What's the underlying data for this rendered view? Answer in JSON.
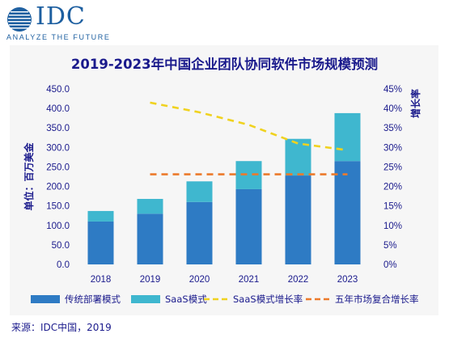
{
  "logo": {
    "name": "IDC",
    "tagline": "ANALYZE THE FUTURE"
  },
  "source": "来源：IDC中国，2019",
  "colors": {
    "on_premise": "#2e7bc4",
    "saas": "#3fb7cf",
    "saas_growth": "#f0d21f",
    "cagr": "#ec7a2b",
    "text": "#1a1a8c",
    "panel": "#f6f6f6"
  },
  "chart_data": {
    "type": "bar",
    "stacked": true,
    "title": "2019-2023年中国企业团队协同软件市场规模预测",
    "ylabel": "单位：百万美金",
    "y2label": "增长率",
    "categories": [
      "2018",
      "2019",
      "2020",
      "2021",
      "2022",
      "2023"
    ],
    "ylim": [
      0,
      450
    ],
    "y_ticks": [
      "0.0",
      "50.0",
      "100.0",
      "150.0",
      "200.0",
      "250.0",
      "300.0",
      "350.0",
      "400.0",
      "450.0"
    ],
    "y2lim": [
      0,
      45
    ],
    "y2_ticks": [
      "0%",
      "5%",
      "10%",
      "15%",
      "20%",
      "25%",
      "30%",
      "35%",
      "40%",
      "45%"
    ],
    "series": [
      {
        "name": "传统部署模式",
        "type": "bar",
        "axis": "left",
        "values": [
          110,
          130,
          160,
          193,
          228,
          265
        ]
      },
      {
        "name": "SaaS模式",
        "type": "bar",
        "axis": "left",
        "values": [
          27,
          38,
          53,
          72,
          94,
          123
        ]
      },
      {
        "name": "SaaS模式增长率",
        "type": "line",
        "axis": "right",
        "dash": "dashed",
        "values": [
          null,
          41.5,
          39,
          35.8,
          31,
          29.3
        ]
      },
      {
        "name": "五年市场复合增长率",
        "type": "line",
        "axis": "right",
        "dash": "dashed",
        "values": [
          null,
          23.1,
          23.1,
          23.1,
          23.1,
          23.1
        ]
      }
    ],
    "grid": false,
    "legend_position": "bottom"
  }
}
